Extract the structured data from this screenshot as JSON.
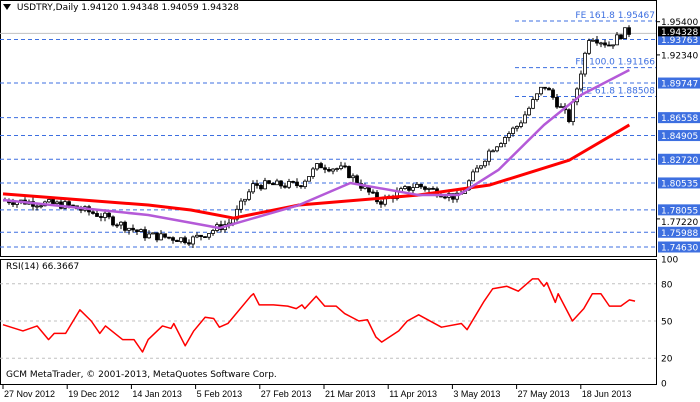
{
  "header": {
    "symbol": "USDTRY,Daily",
    "open": "1.94120",
    "high": "1.94348",
    "low": "1.94059",
    "close": "1.94328"
  },
  "rsi_label": "RSI(14) 66.3667",
  "copyright": "GCM MetaTrader, © 2001-2013, MetaQuotes Software Corp.",
  "colors": {
    "candle": "#000000",
    "ma_fast": "#b45ad8",
    "ma_slow": "#ff0000",
    "rsi": "#ff0000",
    "level": "#3d6fe0",
    "grid": "#c0c0c0"
  },
  "chart_data": [
    {
      "type": "candlestick",
      "title": "USDTRY,Daily",
      "ylim": [
        1.742,
        1.957
      ],
      "current_price": "1.94328",
      "close_path": [
        [
          "2012-11-27",
          1.7896
        ],
        [
          "2012-12-19",
          1.785
        ],
        [
          "2012-12-31",
          1.7758
        ],
        [
          "2013-01-16",
          1.7574
        ],
        [
          "2013-02-01",
          1.7528
        ],
        [
          "2013-02-15",
          1.7694
        ],
        [
          "2013-02-23",
          1.8035
        ],
        [
          "2013-03-11",
          1.8035
        ],
        [
          "2013-03-18",
          1.8219
        ],
        [
          "2013-03-27",
          1.8173
        ],
        [
          "2013-04-08",
          1.7878
        ],
        [
          "2013-04-21",
          1.8035
        ],
        [
          "2013-05-06",
          1.7915
        ],
        [
          "2013-05-17",
          1.8357
        ],
        [
          "2013-05-27",
          1.8588
        ],
        [
          "2013-06-05",
          1.8957
        ],
        [
          "2013-06-14",
          1.8634
        ],
        [
          "2013-06-21",
          1.9418
        ],
        [
          "2013-06-28",
          1.9326
        ],
        [
          "2013-07-03",
          1.9445
        ]
      ],
      "ma_fast": [
        [
          "2012-11-27",
          1.7896
        ],
        [
          "2013-01-17",
          1.7758
        ],
        [
          "2013-02-11",
          1.7638
        ],
        [
          "2013-03-11",
          1.785
        ],
        [
          "2013-03-29",
          1.8053
        ],
        [
          "2013-04-22",
          1.7942
        ],
        [
          "2013-05-06",
          1.7942
        ],
        [
          "2013-05-20",
          1.8173
        ],
        [
          "2013-06-05",
          1.8588
        ],
        [
          "2013-06-18",
          1.8864
        ],
        [
          "2013-07-05",
          1.9095
        ]
      ],
      "ma_slow": [
        [
          "2012-11-27",
          1.7953
        ],
        [
          "2013-01-17",
          1.785
        ],
        [
          "2013-02-01",
          1.7804
        ],
        [
          "2013-02-16",
          1.773
        ],
        [
          "2013-03-11",
          1.785
        ],
        [
          "2013-04-22",
          1.7942
        ],
        [
          "2013-05-17",
          1.8035
        ],
        [
          "2013-06-14",
          1.8265
        ],
        [
          "2013-07-05",
          1.8588
        ]
      ],
      "levels": [
        "1.93763",
        "1.89747",
        "1.86558",
        "1.84905",
        "1.82720",
        "1.80535",
        "1.78055",
        "1.75988",
        "1.74630"
      ],
      "fibo": [
        {
          "label": "FE 161.8",
          "value": "1.95467"
        },
        {
          "label": "FE 100.0",
          "value": "1.91166"
        },
        {
          "label": "FE 61.8",
          "value": "1.88508"
        }
      ],
      "y_ticks": [
        "1.95400",
        "1.92340",
        "1.77220"
      ],
      "x_ticks": [
        "27 Nov 2012",
        "19 Dec 2012",
        "14 Jan 2013",
        "5 Feb 2013",
        "27 Feb 2013",
        "21 Mar 2013",
        "11 Apr 2013",
        "3 May 2013",
        "27 May 2013",
        "18 Jun 2013"
      ]
    },
    {
      "type": "line",
      "title": "RSI(14) 66.3667",
      "ylim": [
        0,
        100
      ],
      "y_ticks": [
        "100",
        "80",
        "50",
        "20",
        "0"
      ],
      "grid_levels": [
        80,
        50,
        20
      ],
      "values": [
        [
          "2012-11-27",
          47
        ],
        [
          "2012-12-04",
          42
        ],
        [
          "2012-12-09",
          46
        ],
        [
          "2012-12-13",
          35
        ],
        [
          "2012-12-15",
          40
        ],
        [
          "2012-12-19",
          40
        ],
        [
          "2012-12-24",
          59
        ],
        [
          "2012-12-28",
          50
        ],
        [
          "2012-12-31",
          40
        ],
        [
          "2013-01-02",
          46
        ],
        [
          "2013-01-08",
          35
        ],
        [
          "2013-01-12",
          35
        ],
        [
          "2013-01-15",
          25
        ],
        [
          "2013-01-17",
          35
        ],
        [
          "2013-01-22",
          46
        ],
        [
          "2013-01-25",
          44
        ],
        [
          "2013-01-26",
          48
        ],
        [
          "2013-01-30",
          30
        ],
        [
          "2013-02-02",
          42
        ],
        [
          "2013-02-06",
          53
        ],
        [
          "2013-02-09",
          52
        ],
        [
          "2013-02-11",
          45
        ],
        [
          "2013-02-14",
          48
        ],
        [
          "2013-02-22",
          70
        ],
        [
          "2013-02-23",
          72
        ],
        [
          "2013-02-25",
          63
        ],
        [
          "2013-03-02",
          63
        ],
        [
          "2013-03-07",
          62
        ],
        [
          "2013-03-10",
          60
        ],
        [
          "2013-03-12",
          63
        ],
        [
          "2013-03-13",
          60
        ],
        [
          "2013-03-17",
          70
        ],
        [
          "2013-03-20",
          62
        ],
        [
          "2013-03-24",
          62
        ],
        [
          "2013-03-27",
          56
        ],
        [
          "2013-04-01",
          50
        ],
        [
          "2013-04-04",
          51
        ],
        [
          "2013-04-07",
          37
        ],
        [
          "2013-04-09",
          33
        ],
        [
          "2013-04-11",
          36
        ],
        [
          "2013-04-15",
          42
        ],
        [
          "2013-04-18",
          50
        ],
        [
          "2013-04-22",
          55
        ],
        [
          "2013-04-30",
          45
        ],
        [
          "2013-05-07",
          48
        ],
        [
          "2013-05-09",
          43
        ],
        [
          "2013-05-15",
          66
        ],
        [
          "2013-05-18",
          76
        ],
        [
          "2013-05-23",
          78
        ],
        [
          "2013-05-27",
          74
        ],
        [
          "2013-06-01",
          84
        ],
        [
          "2013-06-03",
          84
        ],
        [
          "2013-06-05",
          78
        ],
        [
          "2013-06-06",
          81
        ],
        [
          "2013-06-09",
          65
        ],
        [
          "2013-06-10",
          72
        ],
        [
          "2013-06-15",
          50
        ],
        [
          "2013-06-19",
          60
        ],
        [
          "2013-06-22",
          72
        ],
        [
          "2013-06-25",
          72
        ],
        [
          "2013-06-28",
          62
        ],
        [
          "2013-07-02",
          62
        ],
        [
          "2013-07-05",
          67
        ],
        [
          "2013-07-07",
          66
        ]
      ]
    }
  ]
}
